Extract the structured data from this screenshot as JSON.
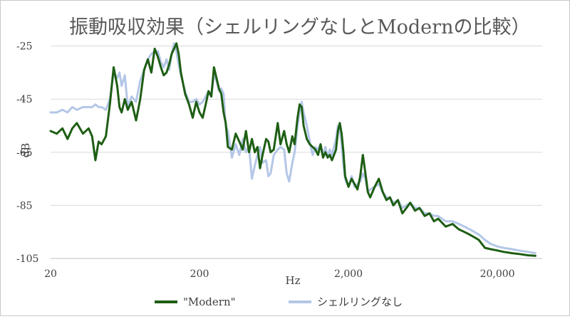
{
  "chart_data": {
    "type": "line",
    "title": "振動吸収効果（シェルリングなしとModernの比較）",
    "xlabel": "Hz",
    "ylabel": "dB",
    "xscale": "log",
    "xlim": [
      20,
      40000
    ],
    "ylim": [
      -105,
      -20
    ],
    "x_ticks": [
      20,
      200,
      2000,
      20000
    ],
    "x_tick_labels": [
      "20",
      "200",
      "2,000",
      "20,000"
    ],
    "y_ticks": [
      -25,
      -45,
      -65,
      -85,
      -105
    ],
    "y_tick_labels": [
      "-25",
      "-45",
      "-65",
      "-85",
      "-105"
    ],
    "grid": "horizontal",
    "legend": "bottom",
    "series": [
      {
        "name": "\"Modern\"",
        "color": "#1e5e14",
        "points": [
          [
            20,
            -57
          ],
          [
            22,
            -58
          ],
          [
            24,
            -56
          ],
          [
            26,
            -60
          ],
          [
            28,
            -56
          ],
          [
            30,
            -54
          ],
          [
            33,
            -58
          ],
          [
            36,
            -56
          ],
          [
            38,
            -59
          ],
          [
            40,
            -68
          ],
          [
            42,
            -61
          ],
          [
            44,
            -62
          ],
          [
            47,
            -59
          ],
          [
            50,
            -47
          ],
          [
            53,
            -33
          ],
          [
            56,
            -40
          ],
          [
            58,
            -48
          ],
          [
            60,
            -50
          ],
          [
            63,
            -45
          ],
          [
            66,
            -49
          ],
          [
            70,
            -46
          ],
          [
            75,
            -53
          ],
          [
            80,
            -45
          ],
          [
            85,
            -34
          ],
          [
            90,
            -30
          ],
          [
            95,
            -35
          ],
          [
            100,
            -26
          ],
          [
            105,
            -29
          ],
          [
            110,
            -33
          ],
          [
            115,
            -36
          ],
          [
            120,
            -35
          ],
          [
            125,
            -32
          ],
          [
            130,
            -28
          ],
          [
            135,
            -26
          ],
          [
            140,
            -24
          ],
          [
            145,
            -28
          ],
          [
            150,
            -35
          ],
          [
            160,
            -43
          ],
          [
            170,
            -47
          ],
          [
            180,
            -52
          ],
          [
            190,
            -46
          ],
          [
            200,
            -50
          ],
          [
            210,
            -52
          ],
          [
            220,
            -47
          ],
          [
            230,
            -42
          ],
          [
            240,
            -44
          ],
          [
            250,
            -33
          ],
          [
            260,
            -37
          ],
          [
            270,
            -41
          ],
          [
            280,
            -43
          ],
          [
            290,
            -50
          ],
          [
            300,
            -54
          ],
          [
            310,
            -63
          ],
          [
            330,
            -64
          ],
          [
            350,
            -58
          ],
          [
            370,
            -61
          ],
          [
            390,
            -64
          ],
          [
            410,
            -57
          ],
          [
            430,
            -65
          ],
          [
            450,
            -60
          ],
          [
            470,
            -65
          ],
          [
            490,
            -63
          ],
          [
            510,
            -71
          ],
          [
            530,
            -66
          ],
          [
            560,
            -60
          ],
          [
            580,
            -61
          ],
          [
            600,
            -65
          ],
          [
            630,
            -64
          ],
          [
            670,
            -54
          ],
          [
            700,
            -62
          ],
          [
            740,
            -57
          ],
          [
            770,
            -62
          ],
          [
            800,
            -65
          ],
          [
            840,
            -59
          ],
          [
            870,
            -62
          ],
          [
            910,
            -52
          ],
          [
            940,
            -47
          ],
          [
            970,
            -48
          ],
          [
            1000,
            -55
          ],
          [
            1050,
            -60
          ],
          [
            1100,
            -62
          ],
          [
            1150,
            -63
          ],
          [
            1200,
            -64
          ],
          [
            1250,
            -66
          ],
          [
            1300,
            -62
          ],
          [
            1350,
            -67
          ],
          [
            1400,
            -65
          ],
          [
            1450,
            -67
          ],
          [
            1500,
            -66
          ],
          [
            1550,
            -68
          ],
          [
            1600,
            -66
          ],
          [
            1650,
            -64
          ],
          [
            1700,
            -57
          ],
          [
            1750,
            -54
          ],
          [
            1800,
            -58
          ],
          [
            1850,
            -65
          ],
          [
            1900,
            -74
          ],
          [
            2000,
            -78
          ],
          [
            2100,
            -75
          ],
          [
            2200,
            -77
          ],
          [
            2300,
            -79
          ],
          [
            2400,
            -74
          ],
          [
            2500,
            -66
          ],
          [
            2600,
            -73
          ],
          [
            2700,
            -80
          ],
          [
            2800,
            -82
          ],
          [
            3000,
            -78
          ],
          [
            3200,
            -75
          ],
          [
            3400,
            -80
          ],
          [
            3600,
            -83
          ],
          [
            3800,
            -82
          ],
          [
            4000,
            -85
          ],
          [
            4300,
            -83
          ],
          [
            4600,
            -88
          ],
          [
            4900,
            -86
          ],
          [
            5200,
            -84
          ],
          [
            5600,
            -87
          ],
          [
            6000,
            -86
          ],
          [
            6500,
            -89
          ],
          [
            7000,
            -88
          ],
          [
            7500,
            -91
          ],
          [
            8000,
            -90
          ],
          [
            9000,
            -93
          ],
          [
            10000,
            -92
          ],
          [
            11000,
            -94
          ],
          [
            12000,
            -95
          ],
          [
            13000,
            -96
          ],
          [
            14000,
            -97
          ],
          [
            15000,
            -98
          ],
          [
            16500,
            -101
          ],
          [
            18000,
            -101.5
          ],
          [
            20000,
            -102
          ],
          [
            22000,
            -102.5
          ],
          [
            25000,
            -103
          ],
          [
            28000,
            -103.3
          ],
          [
            32000,
            -103.8
          ],
          [
            36000,
            -104
          ]
        ]
      },
      {
        "name": "シェルリングなし",
        "color": "#b4c7e7",
        "points": [
          [
            20,
            -50
          ],
          [
            22,
            -50
          ],
          [
            24,
            -49
          ],
          [
            26,
            -50
          ],
          [
            28,
            -48
          ],
          [
            30,
            -49
          ],
          [
            33,
            -48
          ],
          [
            36,
            -48
          ],
          [
            38,
            -48
          ],
          [
            40,
            -47
          ],
          [
            42,
            -48
          ],
          [
            44,
            -48
          ],
          [
            47,
            -49
          ],
          [
            50,
            -45
          ],
          [
            53,
            -35
          ],
          [
            56,
            -37
          ],
          [
            58,
            -35
          ],
          [
            60,
            -40
          ],
          [
            63,
            -36
          ],
          [
            66,
            -48
          ],
          [
            70,
            -44
          ],
          [
            75,
            -46
          ],
          [
            80,
            -38
          ],
          [
            85,
            -34
          ],
          [
            90,
            -30
          ],
          [
            95,
            -28
          ],
          [
            100,
            -27
          ],
          [
            105,
            -27
          ],
          [
            110,
            -31
          ],
          [
            115,
            -33
          ],
          [
            120,
            -30
          ],
          [
            125,
            -34
          ],
          [
            130,
            -28
          ],
          [
            135,
            -24
          ],
          [
            140,
            -27
          ],
          [
            145,
            -32
          ],
          [
            150,
            -36
          ],
          [
            160,
            -42
          ],
          [
            170,
            -46
          ],
          [
            180,
            -46
          ],
          [
            190,
            -45
          ],
          [
            200,
            -47
          ],
          [
            210,
            -46
          ],
          [
            220,
            -44
          ],
          [
            230,
            -42
          ],
          [
            240,
            -44
          ],
          [
            250,
            -36
          ],
          [
            260,
            -38
          ],
          [
            270,
            -42
          ],
          [
            280,
            -41
          ],
          [
            290,
            -43
          ],
          [
            300,
            -55
          ],
          [
            310,
            -57
          ],
          [
            330,
            -67
          ],
          [
            350,
            -62
          ],
          [
            370,
            -66
          ],
          [
            390,
            -60
          ],
          [
            410,
            -65
          ],
          [
            430,
            -63
          ],
          [
            450,
            -75
          ],
          [
            470,
            -70
          ],
          [
            490,
            -66
          ],
          [
            510,
            -63
          ],
          [
            530,
            -69
          ],
          [
            560,
            -68
          ],
          [
            580,
            -74
          ],
          [
            600,
            -73
          ],
          [
            630,
            -66
          ],
          [
            670,
            -64
          ],
          [
            700,
            -63
          ],
          [
            740,
            -64
          ],
          [
            770,
            -73
          ],
          [
            800,
            -76
          ],
          [
            840,
            -69
          ],
          [
            870,
            -65
          ],
          [
            910,
            -55
          ],
          [
            940,
            -50
          ],
          [
            970,
            -46
          ],
          [
            1000,
            -50
          ],
          [
            1050,
            -55
          ],
          [
            1100,
            -61
          ],
          [
            1150,
            -66
          ],
          [
            1200,
            -63
          ],
          [
            1250,
            -64
          ],
          [
            1300,
            -62
          ],
          [
            1350,
            -66
          ],
          [
            1400,
            -63
          ],
          [
            1450,
            -67
          ],
          [
            1500,
            -64
          ],
          [
            1550,
            -66
          ],
          [
            1600,
            -63
          ],
          [
            1650,
            -60
          ],
          [
            1700,
            -55
          ],
          [
            1750,
            -57
          ],
          [
            1800,
            -62
          ],
          [
            1850,
            -70
          ],
          [
            1900,
            -75
          ],
          [
            2000,
            -78
          ],
          [
            2100,
            -74
          ],
          [
            2200,
            -78
          ],
          [
            2300,
            -77
          ],
          [
            2400,
            -76
          ],
          [
            2500,
            -73
          ],
          [
            2600,
            -75
          ],
          [
            2700,
            -80
          ],
          [
            2800,
            -79
          ],
          [
            3000,
            -78
          ],
          [
            3200,
            -77
          ],
          [
            3400,
            -80
          ],
          [
            3600,
            -82
          ],
          [
            3800,
            -82
          ],
          [
            4000,
            -84
          ],
          [
            4300,
            -83
          ],
          [
            4600,
            -86
          ],
          [
            4900,
            -85
          ],
          [
            5200,
            -84
          ],
          [
            5600,
            -86
          ],
          [
            6000,
            -86
          ],
          [
            6500,
            -88
          ],
          [
            7000,
            -88
          ],
          [
            7500,
            -89
          ],
          [
            8000,
            -89
          ],
          [
            9000,
            -91
          ],
          [
            10000,
            -91
          ],
          [
            11000,
            -92
          ],
          [
            12000,
            -93
          ],
          [
            13000,
            -94
          ],
          [
            14000,
            -95
          ],
          [
            15000,
            -96
          ],
          [
            16500,
            -98
          ],
          [
            18000,
            -99.5
          ],
          [
            20000,
            -100.5
          ],
          [
            22000,
            -101
          ],
          [
            25000,
            -101.5
          ],
          [
            28000,
            -102
          ],
          [
            32000,
            -102.5
          ],
          [
            36000,
            -103
          ]
        ]
      }
    ]
  }
}
